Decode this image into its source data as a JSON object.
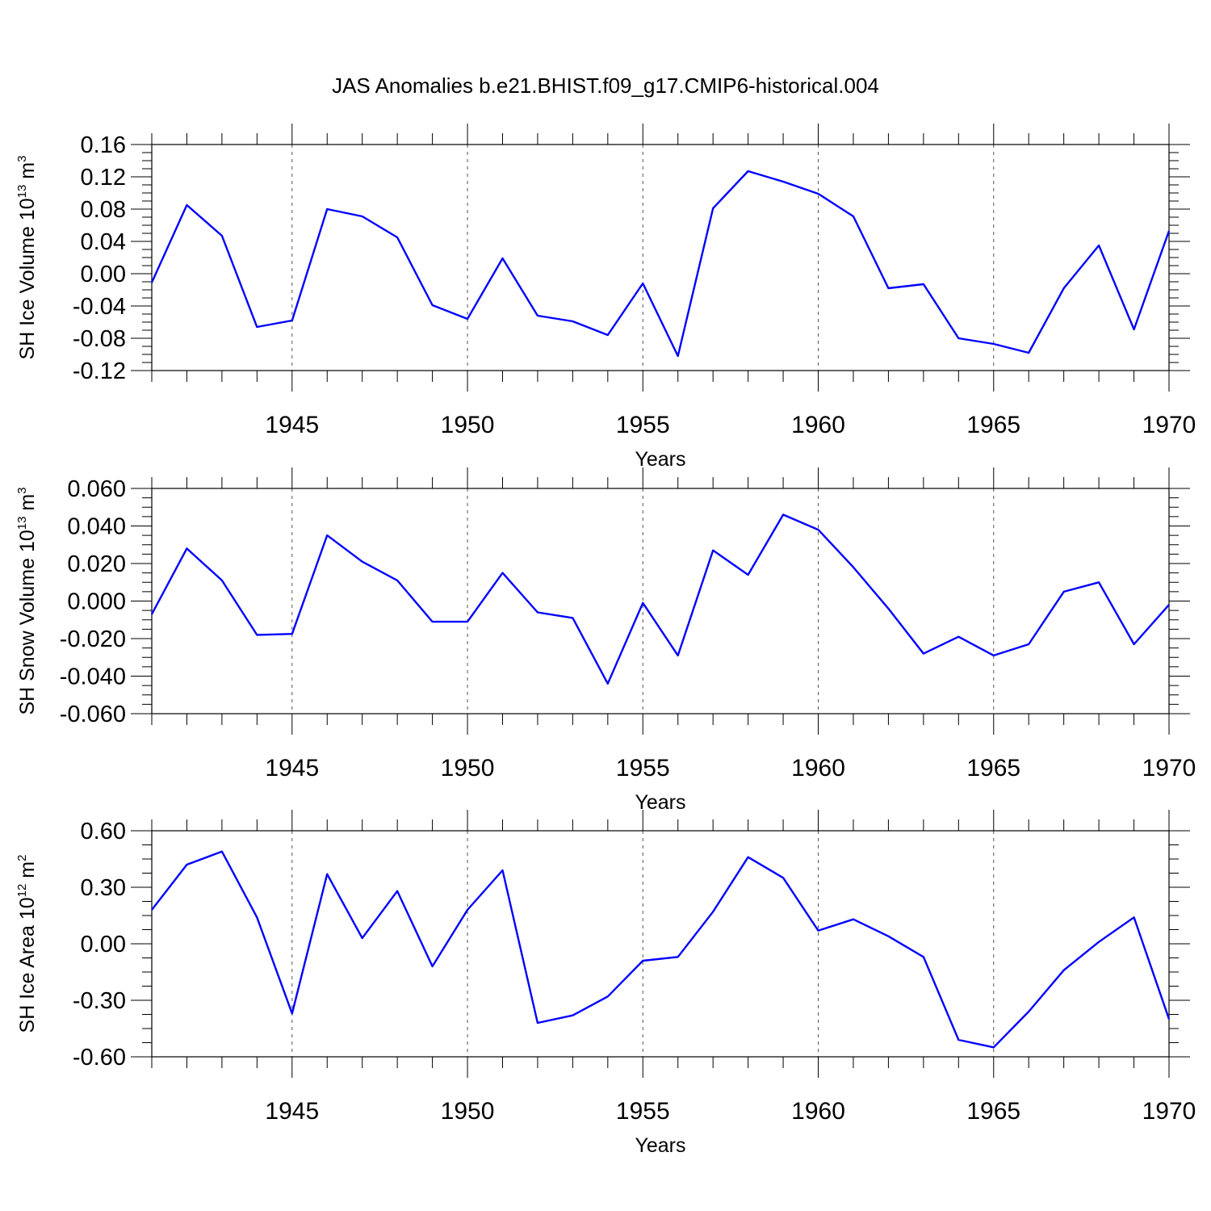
{
  "title": "JAS Anomalies b.e21.BHIST.f09_g17.CMIP6-historical.004",
  "chart_data": [
    {
      "type": "line",
      "ylabel": {
        "text": "SH Ice Volume 10",
        "sup": "13",
        "unit": " m",
        "unit_sup": "3"
      },
      "xlabel": "Years",
      "xlim": [
        1941,
        1970
      ],
      "ylim": [
        -0.12,
        0.16
      ],
      "ymajor": [
        -0.12,
        -0.08,
        -0.04,
        0.0,
        0.04,
        0.08,
        0.12,
        0.16
      ],
      "yticklabels": [
        "-0.12",
        "-0.08",
        "-0.04",
        "0.00",
        "0.04",
        "0.08",
        "0.12",
        "0.16"
      ],
      "xticklabels": [
        "1945",
        "1950",
        "1955",
        "1960",
        "1965",
        "1970"
      ],
      "xmajor": [
        1945,
        1950,
        1955,
        1960,
        1965,
        1970
      ],
      "grid": "dashed vertical at major x ticks",
      "series": [
        {
          "color": "#0000ff",
          "x": [
            1941,
            1942,
            1943,
            1944,
            1945,
            1946,
            1947,
            1948,
            1949,
            1950,
            1951,
            1952,
            1953,
            1954,
            1955,
            1956,
            1957,
            1958,
            1959,
            1960,
            1961,
            1962,
            1963,
            1964,
            1965,
            1966,
            1967,
            1968,
            1969,
            1970
          ],
          "y": [
            -0.011,
            0.085,
            0.047,
            -0.066,
            -0.058,
            0.08,
            0.071,
            0.045,
            -0.039,
            -0.056,
            0.019,
            -0.052,
            -0.059,
            -0.076,
            -0.012,
            -0.102,
            0.081,
            0.127,
            0.114,
            0.099,
            0.071,
            -0.018,
            -0.013,
            -0.08,
            -0.087,
            -0.098,
            -0.018,
            0.035,
            -0.069,
            0.053
          ]
        }
      ]
    },
    {
      "type": "line",
      "ylabel": {
        "text": "SH Snow Volume 10",
        "sup": "13",
        "unit": " m",
        "unit_sup": "3"
      },
      "xlabel": "Years",
      "xlim": [
        1941,
        1970
      ],
      "ylim": [
        -0.06,
        0.06
      ],
      "ymajor": [
        -0.06,
        -0.04,
        -0.02,
        0.0,
        0.02,
        0.04,
        0.06
      ],
      "yticklabels": [
        "-0.060",
        "-0.040",
        "-0.020",
        "0.000",
        "0.020",
        "0.040",
        "0.060"
      ],
      "xticklabels": [
        "1945",
        "1950",
        "1955",
        "1960",
        "1965",
        "1970"
      ],
      "xmajor": [
        1945,
        1950,
        1955,
        1960,
        1965,
        1970
      ],
      "grid": "dashed vertical at major x ticks",
      "series": [
        {
          "color": "#0000ff",
          "x": [
            1941,
            1942,
            1943,
            1944,
            1945,
            1946,
            1947,
            1948,
            1949,
            1950,
            1951,
            1952,
            1953,
            1954,
            1955,
            1956,
            1957,
            1958,
            1959,
            1960,
            1961,
            1962,
            1963,
            1964,
            1965,
            1966,
            1967,
            1968,
            1969,
            1970
          ],
          "y": [
            -0.007,
            0.028,
            0.011,
            -0.018,
            -0.0175,
            0.035,
            0.021,
            0.011,
            -0.011,
            -0.011,
            0.015,
            -0.006,
            -0.009,
            -0.044,
            -0.001,
            -0.029,
            0.027,
            0.014,
            0.046,
            0.038,
            0.018,
            -0.004,
            -0.028,
            -0.019,
            -0.029,
            -0.023,
            0.005,
            0.01,
            -0.023,
            -0.002
          ]
        }
      ]
    },
    {
      "type": "line",
      "ylabel": {
        "text": "SH Ice Area 10",
        "sup": "12",
        "unit": " m",
        "unit_sup": "2"
      },
      "xlabel": "Years",
      "xlim": [
        1941,
        1970
      ],
      "ylim": [
        -0.6,
        0.6
      ],
      "ymajor": [
        -0.6,
        -0.3,
        0.0,
        0.3,
        0.6
      ],
      "yticklabels": [
        "-0.60",
        "-0.30",
        "0.00",
        "0.30",
        "0.60"
      ],
      "xticklabels": [
        "1945",
        "1950",
        "1955",
        "1960",
        "1965",
        "1970"
      ],
      "xmajor": [
        1945,
        1950,
        1955,
        1960,
        1965,
        1970
      ],
      "grid": "dashed vertical at major x ticks",
      "series": [
        {
          "color": "#0000ff",
          "x": [
            1941,
            1942,
            1943,
            1944,
            1945,
            1946,
            1947,
            1948,
            1949,
            1950,
            1951,
            1952,
            1953,
            1954,
            1955,
            1956,
            1957,
            1958,
            1959,
            1960,
            1961,
            1962,
            1963,
            1964,
            1965,
            1966,
            1967,
            1968,
            1969,
            1970
          ],
          "y": [
            0.18,
            0.42,
            0.49,
            0.14,
            -0.37,
            0.37,
            0.03,
            0.28,
            -0.12,
            0.18,
            0.39,
            -0.42,
            -0.38,
            -0.28,
            -0.09,
            -0.07,
            0.17,
            0.46,
            0.35,
            0.07,
            0.13,
            0.04,
            -0.07,
            -0.51,
            -0.55,
            -0.36,
            -0.14,
            0.01,
            0.14,
            -0.4
          ]
        }
      ]
    }
  ]
}
